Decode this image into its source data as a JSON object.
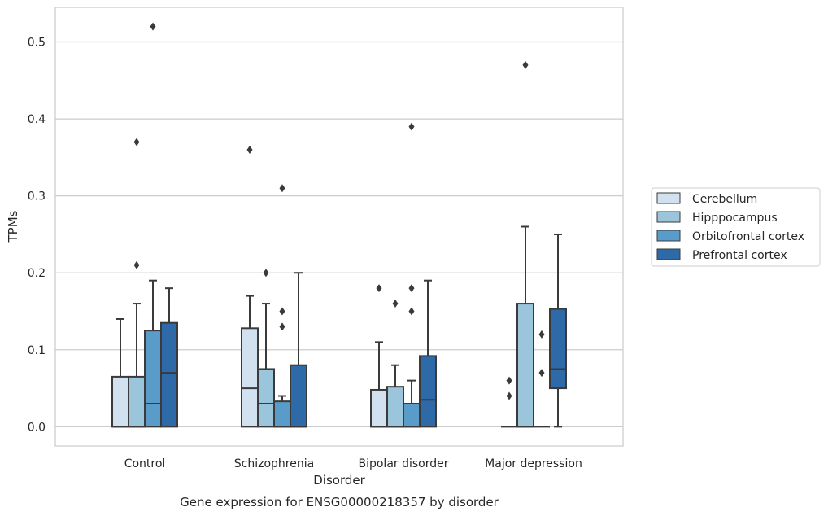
{
  "chart_data": {
    "type": "box",
    "title": "",
    "caption": "Gene expression for ENSG00000218357 by disorder",
    "xlabel": "Disorder",
    "ylabel": "TPMs",
    "ylim": [
      -0.025,
      0.545
    ],
    "yticks": [
      "0.0",
      "0.1",
      "0.2",
      "0.3",
      "0.4",
      "0.5"
    ],
    "ytick_values": [
      0.0,
      0.1,
      0.2,
      0.3,
      0.4,
      0.5
    ],
    "categories": [
      "Control",
      "Schizophrenia",
      "Bipolar disorder",
      "Major depression"
    ],
    "grid": "horizontal",
    "legend_position": "outside-right",
    "series": [
      {
        "name": "Cerebellum",
        "color": "#d1e1f0",
        "boxes": [
          {
            "min": 0.0,
            "q1": 0.0,
            "median": 0.0,
            "q3": 0.065,
            "max": 0.14,
            "outliers": []
          },
          {
            "min": 0.0,
            "q1": 0.0,
            "median": 0.05,
            "q3": 0.128,
            "max": 0.17,
            "outliers": [
              0.36
            ]
          },
          {
            "min": 0.0,
            "q1": 0.0,
            "median": 0.0,
            "q3": 0.048,
            "max": 0.11,
            "outliers": [
              0.18
            ]
          },
          {
            "min": 0.0,
            "q1": 0.0,
            "median": 0.0,
            "q3": 0.0,
            "max": 0.0,
            "outliers": [
              0.06,
              0.04
            ]
          }
        ]
      },
      {
        "name": "Hipppocampus",
        "color": "#9ac5db",
        "boxes": [
          {
            "min": 0.0,
            "q1": 0.0,
            "median": 0.0,
            "q3": 0.065,
            "max": 0.16,
            "outliers": [
              0.37,
              0.21
            ]
          },
          {
            "min": 0.0,
            "q1": 0.0,
            "median": 0.03,
            "q3": 0.075,
            "max": 0.16,
            "outliers": [
              0.2
            ]
          },
          {
            "min": 0.0,
            "q1": 0.0,
            "median": 0.0,
            "q3": 0.052,
            "max": 0.08,
            "outliers": [
              0.16
            ]
          },
          {
            "min": 0.0,
            "q1": 0.0,
            "median": 0.0,
            "q3": 0.16,
            "max": 0.26,
            "outliers": [
              0.47
            ]
          }
        ]
      },
      {
        "name": "Orbitofrontal cortex",
        "color": "#5a9cc9",
        "boxes": [
          {
            "min": 0.0,
            "q1": 0.0,
            "median": 0.03,
            "q3": 0.125,
            "max": 0.19,
            "outliers": [
              0.52
            ]
          },
          {
            "min": 0.0,
            "q1": 0.0,
            "median": 0.0,
            "q3": 0.033,
            "max": 0.04,
            "outliers": [
              0.15,
              0.13,
              0.31
            ]
          },
          {
            "min": 0.0,
            "q1": 0.0,
            "median": 0.0,
            "q3": 0.03,
            "max": 0.06,
            "outliers": [
              0.18,
              0.15,
              0.39
            ]
          },
          {
            "min": 0.0,
            "q1": 0.0,
            "median": 0.0,
            "q3": 0.0,
            "max": 0.0,
            "outliers": [
              0.12,
              0.07
            ]
          }
        ]
      },
      {
        "name": "Prefrontal cortex",
        "color": "#2e6aa8",
        "boxes": [
          {
            "min": 0.0,
            "q1": 0.0,
            "median": 0.07,
            "q3": 0.135,
            "max": 0.18,
            "outliers": []
          },
          {
            "min": 0.0,
            "q1": 0.0,
            "median": 0.0,
            "q3": 0.08,
            "max": 0.2,
            "outliers": []
          },
          {
            "min": 0.0,
            "q1": 0.0,
            "median": 0.035,
            "q3": 0.092,
            "max": 0.19,
            "outliers": []
          },
          {
            "min": 0.0,
            "q1": 0.05,
            "median": 0.075,
            "q3": 0.153,
            "max": 0.25,
            "outliers": []
          }
        ]
      }
    ]
  }
}
